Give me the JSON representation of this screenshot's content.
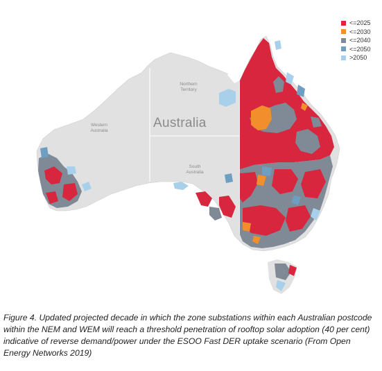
{
  "map": {
    "country_label": "Australia",
    "region_labels": {
      "western_australia": "Western\nAustralia",
      "northern_territory": "Northern\nTerritory",
      "south_australia": "South\nAustralia"
    },
    "land_color": "#e1e1e1",
    "border_color": "#ffffff"
  },
  "legend": {
    "items": [
      {
        "label": "<=2025",
        "color": "#d7263d"
      },
      {
        "label": "<=2030",
        "color": "#f28e2b"
      },
      {
        "label": "<=2040",
        "color": "#7f8a96"
      },
      {
        "label": "<=2050",
        "color": "#6e9fc0"
      },
      {
        "label": ">2050",
        "color": "#a8d0ea"
      }
    ]
  },
  "caption": "Figure 4. Updated projected decade in which the zone substations within each Australian postcode within the NEM and WEM will reach a threshold penetration of rooftop solar adoption (40 per cent) indicative of reverse demand/power under the ESOO Fast DER uptake scenario (From Open Energy Networks 2019)"
}
